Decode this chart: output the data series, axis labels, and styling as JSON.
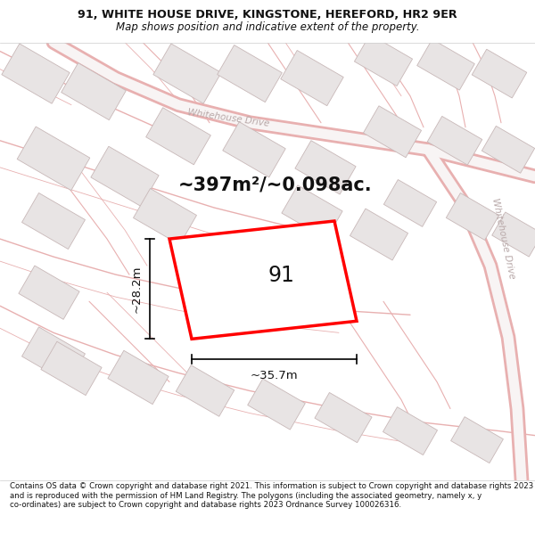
{
  "title": "91, WHITE HOUSE DRIVE, KINGSTONE, HEREFORD, HR2 9ER",
  "subtitle": "Map shows position and indicative extent of the property.",
  "footer": "Contains OS data © Crown copyright and database right 2021. This information is subject to Crown copyright and database rights 2023 and is reproduced with the permission of HM Land Registry. The polygons (including the associated geometry, namely x, y co-ordinates) are subject to Crown copyright and database rights 2023 Ordnance Survey 100026316.",
  "area_label": "~397m²/~0.098ac.",
  "property_number": "91",
  "width_label": "~35.7m",
  "height_label": "~28.2m",
  "map_bg": "#f8f4f4",
  "road_stroke": "#e8b0b0",
  "building_fc": "#e8e4e4",
  "building_ec": "#c8b8b8",
  "road_label_color": "#b8a8a8",
  "highlight_color": "#ff0000",
  "title_color": "#111111",
  "footer_color": "#111111",
  "title_fontsize": 9.2,
  "subtitle_fontsize": 8.5,
  "footer_fontsize": 6.2,
  "area_fontsize": 15,
  "number_fontsize": 17,
  "dim_fontsize": 9.5
}
